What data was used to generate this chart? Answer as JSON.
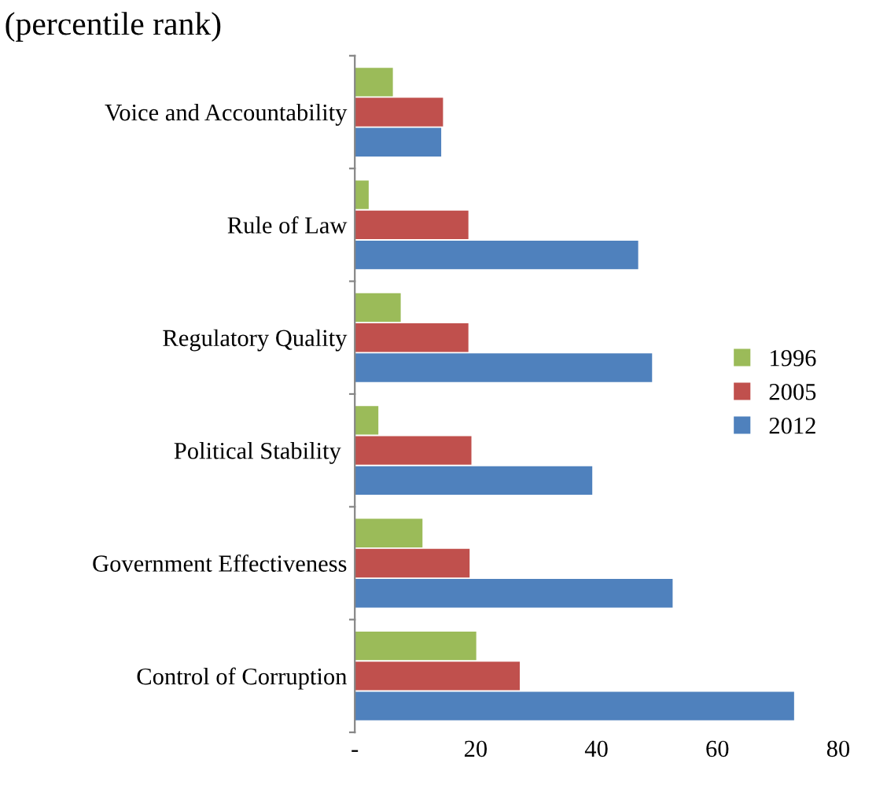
{
  "chart_data": {
    "type": "bar",
    "orientation": "horizontal",
    "title": "(percentile rank)",
    "categories": [
      "Voice and Accountability",
      "Rule of Law",
      "Regulatory Quality",
      "Political Stability ",
      "Government Effectiveness",
      "Control of Corruption"
    ],
    "series": [
      {
        "name": "1996",
        "color": "#9bbb59",
        "values": [
          6.3,
          2.3,
          7.6,
          3.9,
          11.2,
          20.1
        ]
      },
      {
        "name": "2005",
        "color": "#c0504d",
        "values": [
          14.6,
          18.8,
          18.8,
          19.3,
          19.0,
          27.3
        ]
      },
      {
        "name": "2012",
        "color": "#4f81bd",
        "values": [
          14.3,
          46.9,
          49.2,
          39.3,
          52.6,
          72.7
        ]
      }
    ],
    "xlim": [
      0,
      80
    ],
    "xticks": [
      {
        "value": 0,
        "label": "-"
      },
      20,
      40,
      60,
      80
    ],
    "grid": false,
    "legend": "center right"
  }
}
